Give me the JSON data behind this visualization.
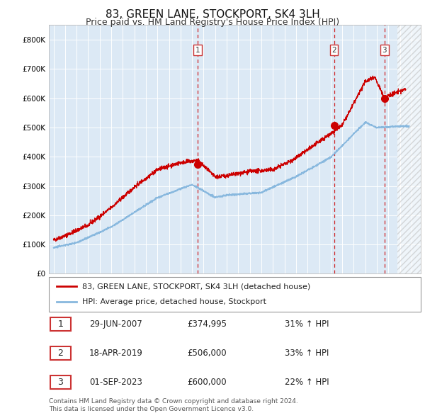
{
  "title": "83, GREEN LANE, STOCKPORT, SK4 3LH",
  "subtitle": "Price paid vs. HM Land Registry's House Price Index (HPI)",
  "title_fontsize": 11,
  "subtitle_fontsize": 9,
  "ylabel_ticks": [
    "£0",
    "£100K",
    "£200K",
    "£300K",
    "£400K",
    "£500K",
    "£600K",
    "£700K",
    "£800K"
  ],
  "ytick_values": [
    0,
    100000,
    200000,
    300000,
    400000,
    500000,
    600000,
    700000,
    800000
  ],
  "ylim": [
    0,
    850000
  ],
  "xlim_start": 1994.6,
  "xlim_end": 2026.8,
  "background_color": "#dce9f5",
  "grid_color": "#ffffff",
  "red_line_color": "#cc0000",
  "blue_line_color": "#88b8de",
  "sale_points": [
    {
      "year_dec": 2007.49,
      "price": 374995,
      "label": "1"
    },
    {
      "year_dec": 2019.29,
      "price": 506000,
      "label": "2"
    },
    {
      "year_dec": 2023.67,
      "price": 600000,
      "label": "3"
    }
  ],
  "vline_color": "#cc0000",
  "legend_line1": "83, GREEN LANE, STOCKPORT, SK4 3LH (detached house)",
  "legend_line2": "HPI: Average price, detached house, Stockport",
  "table_rows": [
    [
      "1",
      "29-JUN-2007",
      "£374,995",
      "31% ↑ HPI"
    ],
    [
      "2",
      "18-APR-2019",
      "£506,000",
      "33% ↑ HPI"
    ],
    [
      "3",
      "01-SEP-2023",
      "£600,000",
      "22% ↑ HPI"
    ]
  ],
  "footnote": "Contains HM Land Registry data © Crown copyright and database right 2024.\nThis data is licensed under the Open Government Licence v3.0.",
  "hatch_region_start": 2024.75,
  "hatch_region_end": 2026.8,
  "figwidth": 6.0,
  "figheight": 5.9
}
